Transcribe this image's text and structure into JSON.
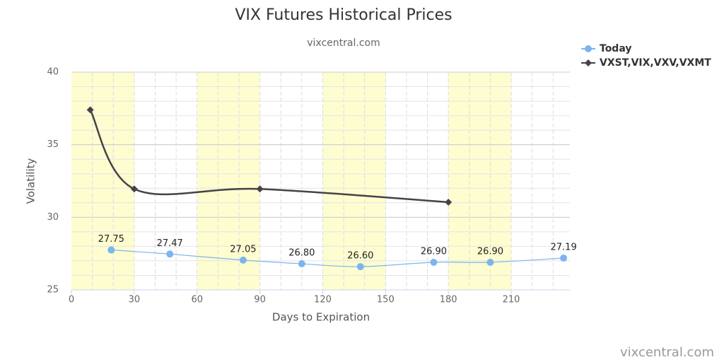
{
  "chart_data": {
    "type": "line",
    "title": "VIX Futures Historical Prices",
    "subtitle": "vixcentral.com",
    "credits": "vixcentral.com",
    "x_label": "Days to Expiration",
    "y_label": "Volatility",
    "xlim": [
      0,
      238
    ],
    "ylim": [
      25,
      40
    ],
    "xticks": [
      0,
      30,
      60,
      90,
      120,
      150,
      180,
      210
    ],
    "yticks": [
      25,
      30,
      35,
      40
    ],
    "x_minor_step": 10,
    "y_minor_step": 1,
    "bands": [
      [
        0,
        30
      ],
      [
        60,
        90
      ],
      [
        120,
        150
      ],
      [
        180,
        210
      ]
    ],
    "band_color": "#fdfdd0",
    "grid": true,
    "legend": "top-right",
    "series": [
      {
        "name": "Today",
        "color": "#7cb5ec",
        "marker": "circle",
        "x": [
          19,
          47,
          82,
          110,
          138,
          173,
          200,
          235
        ],
        "values": [
          27.75,
          27.47,
          27.05,
          26.8,
          26.6,
          26.9,
          26.9,
          27.19
        ],
        "value_labels": [
          "27.75",
          "27.47",
          "27.05",
          "26.80",
          "26.60",
          "26.90",
          "26.90",
          "27.19"
        ]
      },
      {
        "name": "VXST,VIX,VXV,VXMT",
        "color": "#434348",
        "marker": "diamond",
        "x": [
          9,
          30,
          90,
          180
        ],
        "values": [
          37.4,
          31.95,
          31.95,
          31.04
        ]
      }
    ]
  }
}
